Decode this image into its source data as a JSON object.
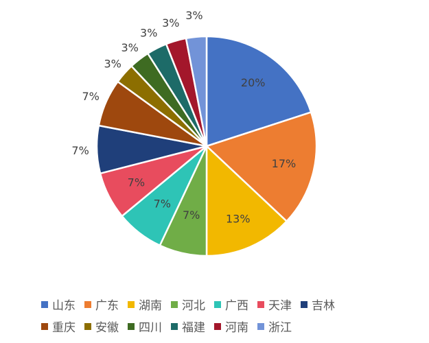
{
  "chart_data": {
    "type": "pie",
    "categories": [
      "山东",
      "广东",
      "湖南",
      "河北",
      "广西",
      "天津",
      "吉林",
      "重庆",
      "安徽",
      "四川",
      "福建",
      "河南",
      "浙江"
    ],
    "values": [
      20,
      17,
      13,
      7,
      7,
      7,
      7,
      7,
      3,
      3,
      3,
      3,
      3
    ],
    "labels": [
      "20%",
      "17%",
      "13%",
      "7%",
      "7%",
      "7%",
      "7%",
      "7%",
      "3%",
      "3%",
      "3%",
      "3%",
      "3%"
    ],
    "colors": [
      "#4472C4",
      "#ED7D31",
      "#F2B800",
      "#70AD47",
      "#2EC4B6",
      "#E84C5E",
      "#1F3F7A",
      "#9E480E",
      "#8C6E00",
      "#3E6B22",
      "#1D6B68",
      "#A3172B",
      "#7293D8"
    ],
    "start_angle_deg": 0,
    "direction": "clockwise",
    "legend_position": "bottom"
  }
}
